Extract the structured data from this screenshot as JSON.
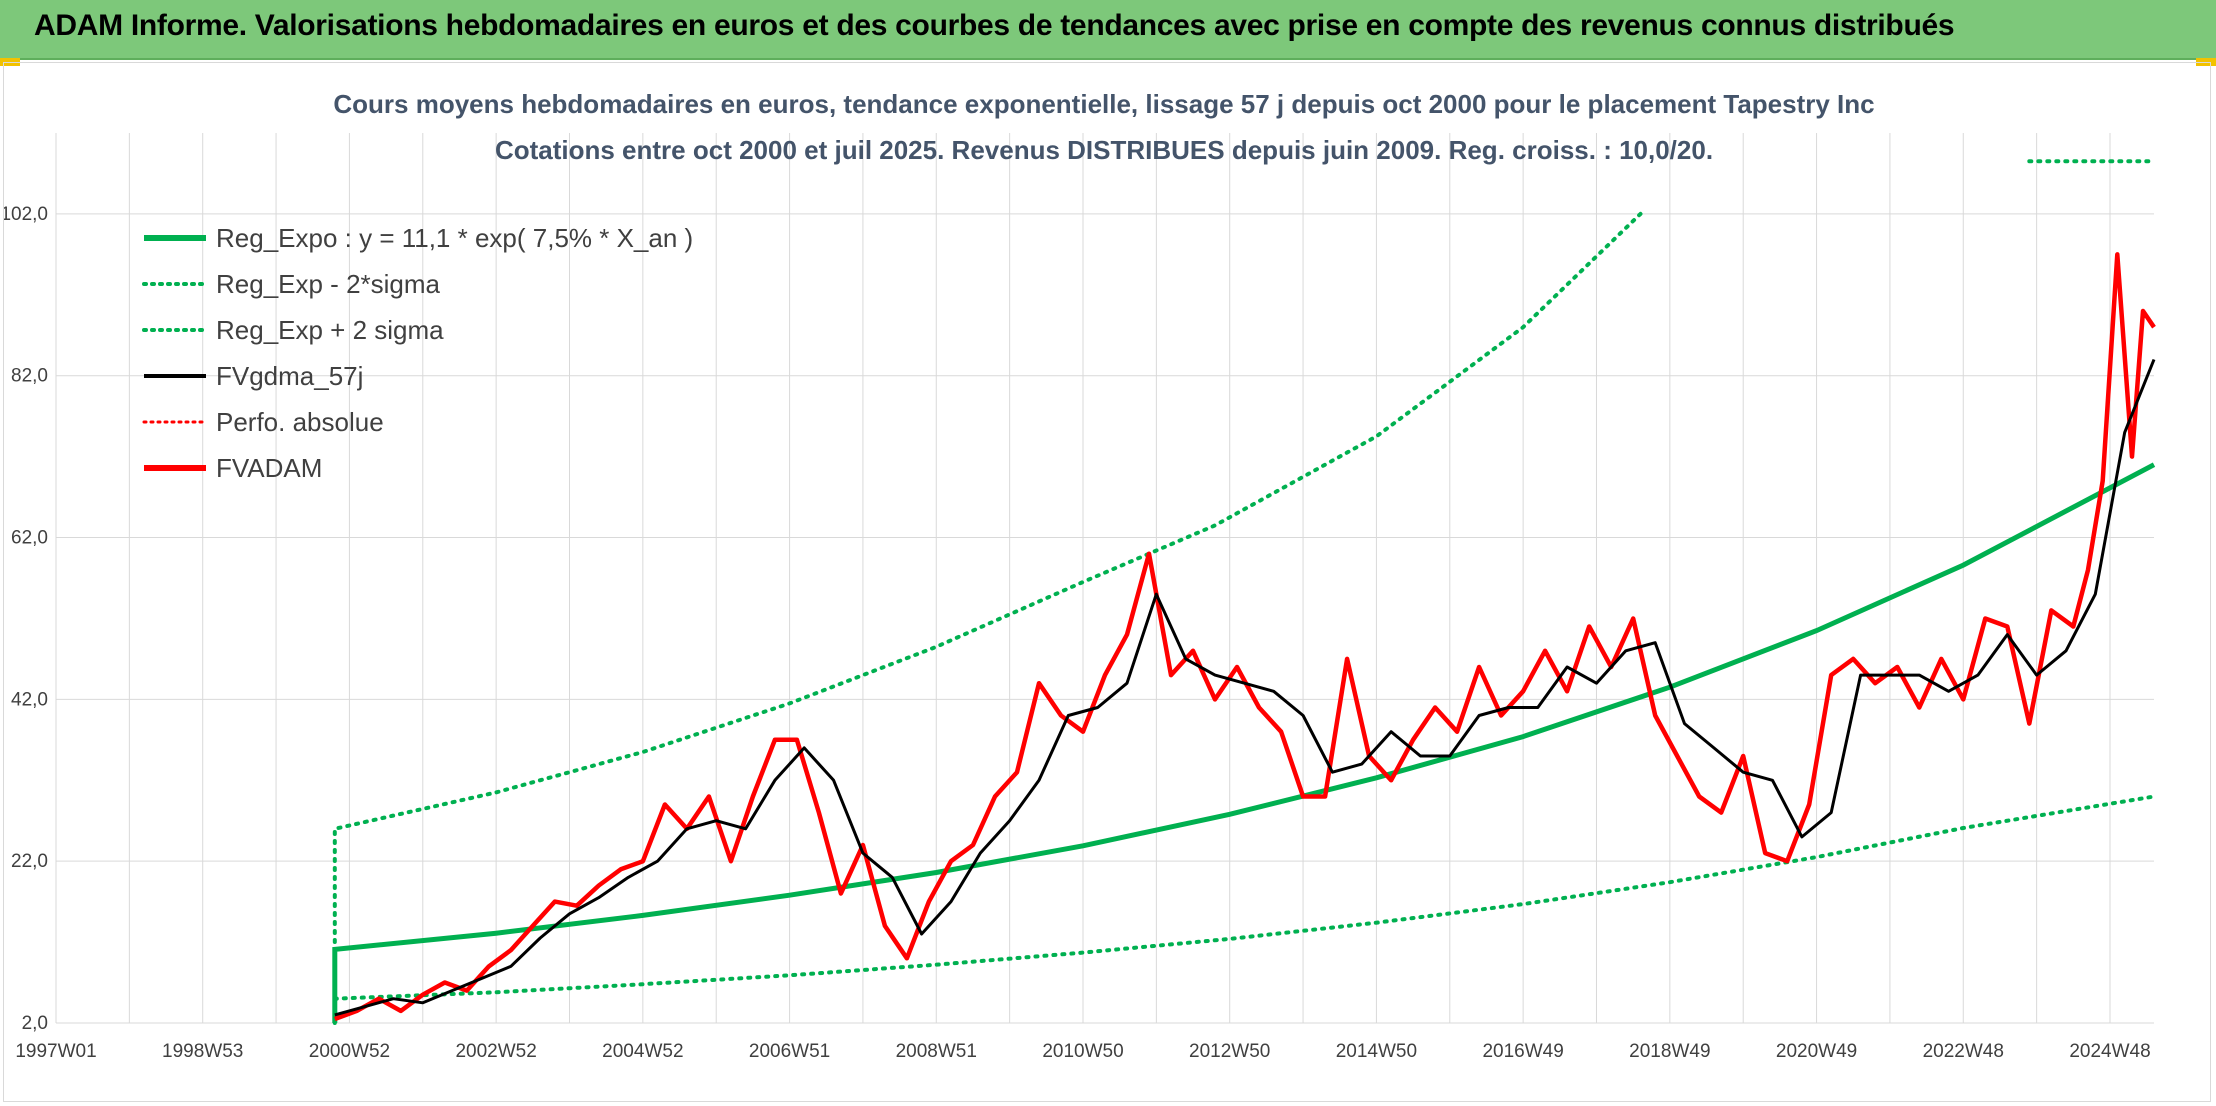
{
  "header": {
    "banner_title": "ADAM Informe. Valorisations hebdomadaires en euros et des courbes de tendances avec prise en compte des revenus connus distribués"
  },
  "colors": {
    "banner": "#7dc87a",
    "trend_green": "#00b050",
    "smooth_black": "#000000",
    "price_red": "#ff0000",
    "grid": "#d9d9d9"
  },
  "chart_data": {
    "type": "line",
    "title": "Cours moyens hebdomadaires en euros, tendance exponentielle, lissage 57 j depuis oct 2000 pour le placement Tapestry Inc",
    "subtitle": "Cotations entre oct 2000 et juil 2025. Revenus DISTRIBUES depuis juin 2009. Reg. croiss. : 10,0/20.",
    "xlabel": "",
    "ylabel": "",
    "x_range": [
      1997.0,
      2025.6
    ],
    "ylim": [
      2.0,
      112.0
    ],
    "y_ticks": [
      "2,0",
      "22,0",
      "42,0",
      "62,0",
      "82,0",
      "102,0"
    ],
    "y_tick_values": [
      2,
      22,
      42,
      62,
      82,
      102
    ],
    "x_ticks": [
      "1997W01",
      "1998W53",
      "2000W52",
      "2002W52",
      "2004W52",
      "2006W51",
      "2008W51",
      "2010W50",
      "2012W50",
      "2014W50",
      "2016W49",
      "2018W49",
      "2020W49",
      "2022W48",
      "2024W48"
    ],
    "x_tick_values": [
      1997.0,
      1999.0,
      2001.0,
      2003.0,
      2005.0,
      2007.0,
      2009.0,
      2011.0,
      2013.0,
      2015.0,
      2017.0,
      2019.0,
      2021.0,
      2023.0,
      2025.0
    ],
    "grid": true,
    "legend_position": "top-left",
    "legend": [
      "Reg_Expo : y = 11,1 * exp( 7,5% *  X_an )",
      "Reg_Exp - 2*sigma",
      "Reg_Exp + 2 sigma",
      "FVgdma_57j",
      "Perfo. absolue",
      "FVADAM"
    ],
    "series": [
      {
        "name": "Reg_Expo : y = 11,1 * exp( 7,5% *  X_an )",
        "style": "solid-thick-green",
        "x": [
          2000.8,
          2000.8,
          2003,
          2005,
          2007,
          2009,
          2011,
          2013,
          2015,
          2017,
          2019,
          2021,
          2023,
          2025.6
        ],
        "values": [
          2.0,
          11.1,
          13.1,
          15.3,
          17.8,
          20.6,
          23.9,
          27.8,
          32.3,
          37.4,
          43.5,
          50.5,
          58.6,
          71.0
        ]
      },
      {
        "name": "Reg_Exp - 2*sigma",
        "style": "dotted-green",
        "x": [
          2000.8,
          2003,
          2005,
          2007,
          2009,
          2011,
          2013,
          2015,
          2017,
          2019,
          2021,
          2023,
          2025.6
        ],
        "values": [
          5.0,
          5.8,
          6.8,
          7.9,
          9.2,
          10.7,
          12.4,
          14.4,
          16.7,
          19.4,
          22.5,
          26.1,
          30.0
        ]
      },
      {
        "name": "Reg_Exp + 2 sigma",
        "style": "dotted-green",
        "x": [
          2000.8,
          2000.8,
          2003,
          2005,
          2007,
          2009,
          2011,
          2012.8,
          2015,
          2017,
          2018.6
        ],
        "values": [
          2.0,
          26.0,
          30.5,
          35.5,
          41.5,
          48.5,
          56.5,
          63.5,
          74.5,
          88.0,
          102.0
        ]
      },
      {
        "name": "Reg_Exp + 2 sigma (upper bound)",
        "style": "dotted-green",
        "x": [
          2023.9,
          2025.6
        ],
        "values": [
          108.5,
          108.5
        ]
      },
      {
        "name": "FVgdma_57j",
        "style": "solid-black",
        "x": [
          2000.8,
          2001.2,
          2001.6,
          2002.0,
          2002.4,
          2002.8,
          2003.2,
          2003.6,
          2004.0,
          2004.4,
          2004.8,
          2005.2,
          2005.6,
          2006.0,
          2006.4,
          2006.8,
          2007.2,
          2007.6,
          2008.0,
          2008.4,
          2008.8,
          2009.2,
          2009.6,
          2010.0,
          2010.4,
          2010.8,
          2011.2,
          2011.6,
          2012.0,
          2012.4,
          2012.8,
          2013.2,
          2013.6,
          2014.0,
          2014.4,
          2014.8,
          2015.2,
          2015.6,
          2016.0,
          2016.4,
          2016.8,
          2017.2,
          2017.6,
          2018.0,
          2018.4,
          2018.8,
          2019.2,
          2019.6,
          2020.0,
          2020.4,
          2020.8,
          2021.2,
          2021.6,
          2022.0,
          2022.4,
          2022.8,
          2023.2,
          2023.6,
          2024.0,
          2024.4,
          2024.8,
          2025.2,
          2025.6
        ],
        "values": [
          3.0,
          4.0,
          5.0,
          4.5,
          6.0,
          7.5,
          9.0,
          12.5,
          15.5,
          17.5,
          20.0,
          22.0,
          26.0,
          27.0,
          26.0,
          32.0,
          36.0,
          32.0,
          23.0,
          20.0,
          13.0,
          17.0,
          23.0,
          27.0,
          32.0,
          40.0,
          41.0,
          44.0,
          55.0,
          47.0,
          45.0,
          44.0,
          43.0,
          40.0,
          33.0,
          34.0,
          38.0,
          35.0,
          35.0,
          40.0,
          41.0,
          41.0,
          46.0,
          44.0,
          48.0,
          49.0,
          39.0,
          36.0,
          33.0,
          32.0,
          25.0,
          28.0,
          45.0,
          45.0,
          45.0,
          43.0,
          45.0,
          50.0,
          45.0,
          48.0,
          55.0,
          75.0,
          84.0
        ]
      },
      {
        "name": "FVADAM",
        "style": "solid-thick-red",
        "x": [
          2000.8,
          2001.1,
          2001.4,
          2001.7,
          2002.0,
          2002.3,
          2002.6,
          2002.9,
          2003.2,
          2003.5,
          2003.8,
          2004.1,
          2004.4,
          2004.7,
          2005.0,
          2005.3,
          2005.6,
          2005.9,
          2006.2,
          2006.5,
          2006.8,
          2007.1,
          2007.4,
          2007.7,
          2008.0,
          2008.3,
          2008.6,
          2008.9,
          2009.2,
          2009.5,
          2009.8,
          2010.1,
          2010.4,
          2010.7,
          2011.0,
          2011.3,
          2011.6,
          2011.9,
          2012.2,
          2012.5,
          2012.8,
          2013.1,
          2013.4,
          2013.7,
          2014.0,
          2014.3,
          2014.6,
          2014.9,
          2015.2,
          2015.5,
          2015.8,
          2016.1,
          2016.4,
          2016.7,
          2017.0,
          2017.3,
          2017.6,
          2017.9,
          2018.2,
          2018.5,
          2018.8,
          2019.1,
          2019.4,
          2019.7,
          2020.0,
          2020.3,
          2020.6,
          2020.9,
          2021.2,
          2021.5,
          2021.8,
          2022.1,
          2022.4,
          2022.7,
          2023.0,
          2023.3,
          2023.6,
          2023.9,
          2024.2,
          2024.5,
          2024.7,
          2024.9,
          2025.1,
          2025.3,
          2025.45,
          2025.6
        ],
        "values": [
          2.5,
          3.5,
          5.0,
          3.5,
          5.5,
          7.0,
          6.0,
          9.0,
          11.0,
          14.0,
          17.0,
          16.5,
          19.0,
          21.0,
          22.0,
          29.0,
          26.0,
          30.0,
          22.0,
          30.0,
          37.0,
          37.0,
          28.0,
          18.0,
          24.0,
          14.0,
          10.0,
          17.0,
          22.0,
          24.0,
          30.0,
          33.0,
          44.0,
          40.0,
          38.0,
          45.0,
          50.0,
          60.0,
          45.0,
          48.0,
          42.0,
          46.0,
          41.0,
          38.0,
          30.0,
          30.0,
          47.0,
          35.0,
          32.0,
          37.0,
          41.0,
          38.0,
          46.0,
          40.0,
          43.0,
          48.0,
          43.0,
          51.0,
          46.0,
          52.0,
          40.0,
          35.0,
          30.0,
          28.0,
          35.0,
          23.0,
          22.0,
          29.0,
          45.0,
          47.0,
          44.0,
          46.0,
          41.0,
          47.0,
          42.0,
          52.0,
          51.0,
          39.0,
          53.0,
          51.0,
          58.0,
          69.0,
          97.0,
          72.0,
          90.0,
          88.0
        ]
      }
    ]
  }
}
